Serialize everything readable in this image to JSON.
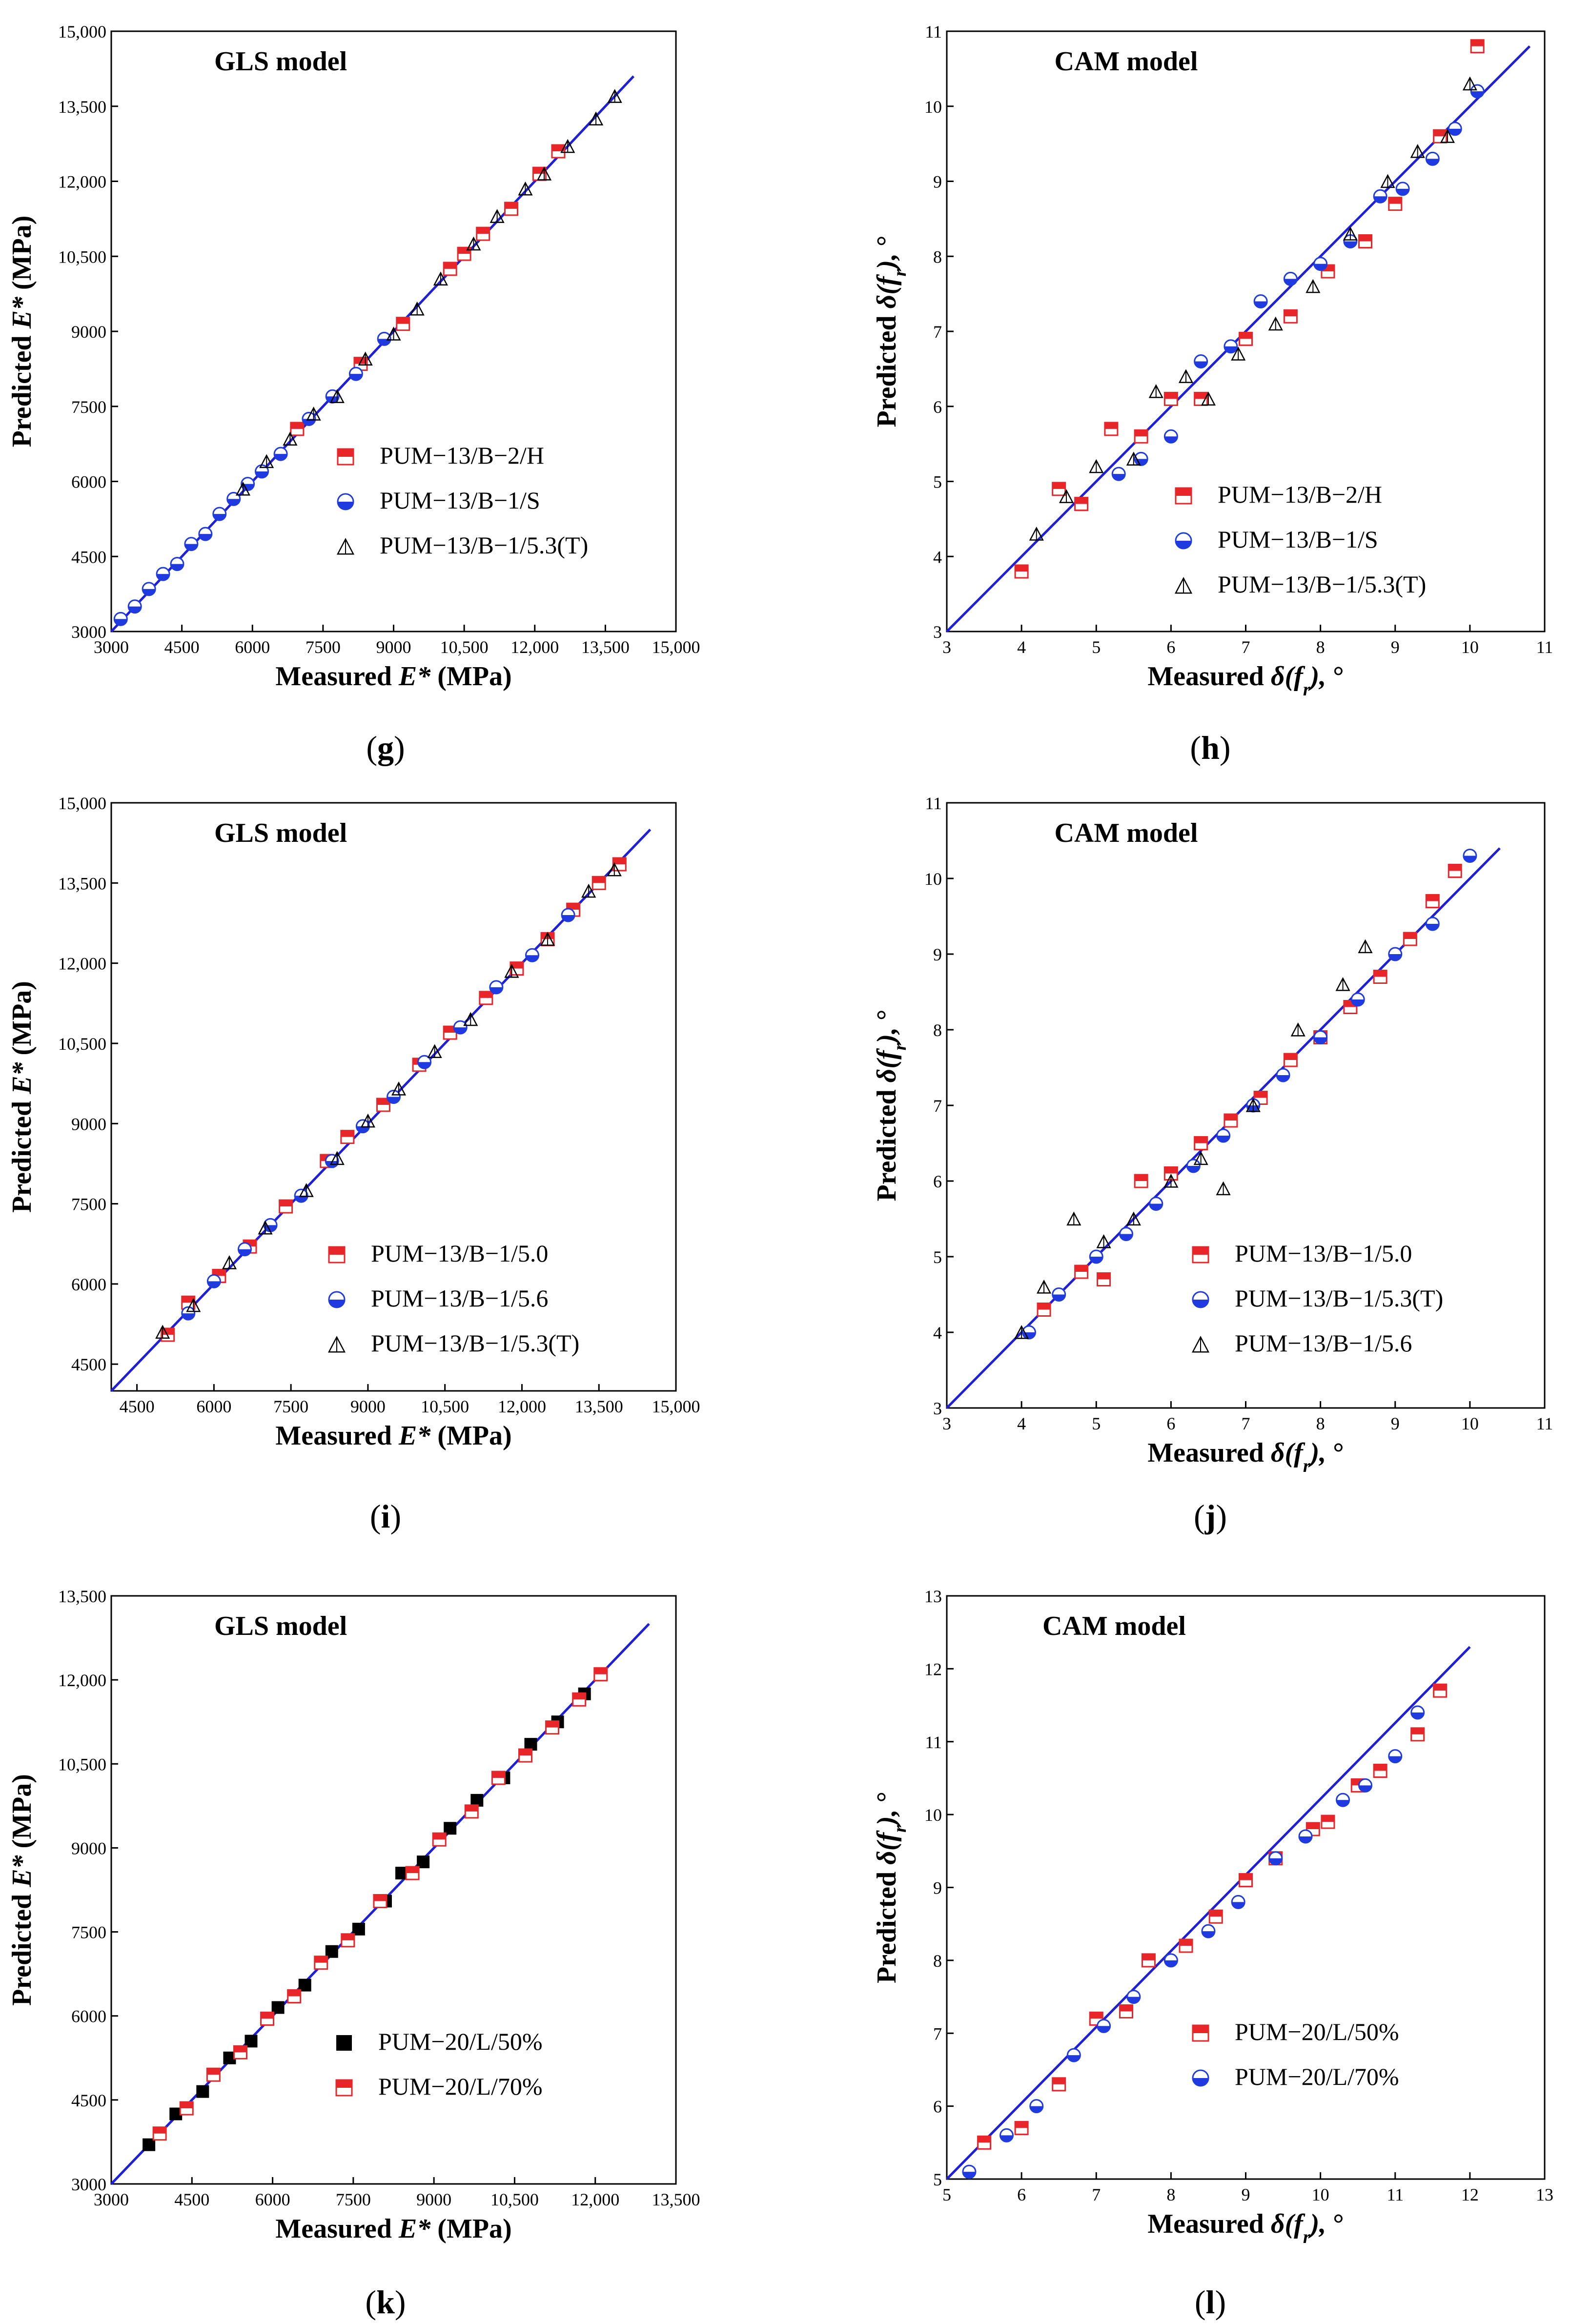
{
  "figure": {
    "panels": [
      {
        "id": "g",
        "title": "GLS model",
        "caption_letter": "g",
        "xlabel": {
          "pre": "Measured ",
          "sym": "E*",
          "post": " (MPa)"
        },
        "ylabel": {
          "pre": "Predicted ",
          "sym": "E*",
          "post": " (MPa)"
        },
        "line_color": "#1f1fd6"
      },
      {
        "id": "h",
        "title": "CAM model",
        "caption_letter": "h",
        "xlabel": {
          "pre": "Measured ",
          "sym": "δ(f_r),",
          "post": " °"
        },
        "ylabel": {
          "pre": "Predicted ",
          "sym": "δ(f_r),",
          "post": " °"
        },
        "line_color": "#1f1fd6"
      },
      {
        "id": "i",
        "title": "GLS model",
        "caption_letter": "i",
        "xlabel": {
          "pre": "Measured ",
          "sym": "E*",
          "post": " (MPa)"
        },
        "ylabel": {
          "pre": "Predicted ",
          "sym": "E*",
          "post": " (MPa)"
        },
        "line_color": "#1f1fd6"
      },
      {
        "id": "j",
        "title": "CAM model",
        "caption_letter": "j",
        "xlabel": {
          "pre": "Measured ",
          "sym": "δ(f_r),",
          "post": " °"
        },
        "ylabel": {
          "pre": "Predicted ",
          "sym": "δ(f_r),",
          "post": " °"
        },
        "line_color": "#1f1fd6"
      },
      {
        "id": "k",
        "title": "GLS model",
        "caption_letter": "k",
        "xlabel": {
          "pre": "Measured ",
          "sym": "E*",
          "post": " (MPa)"
        },
        "ylabel": {
          "pre": "Predicted ",
          "sym": "E*",
          "post": " (MPa)"
        },
        "line_color": "#1f1fd6"
      },
      {
        "id": "l",
        "title": "CAM model",
        "caption_letter": "l",
        "xlabel": {
          "pre": "Measured ",
          "sym": "δ(f_r),",
          "post": " °"
        },
        "ylabel": {
          "pre": "Predicted ",
          "sym": "δ(f_r),",
          "post": " °"
        },
        "line_color": "#1f1fd6"
      }
    ]
  },
  "chart_data": [
    {
      "type": "scatter",
      "panel": "g",
      "title": "GLS model",
      "xlabel": "Measured E* (MPa)",
      "ylabel": "Predicted E* (MPa)",
      "xlim": [
        3000,
        15000
      ],
      "ylim": [
        3000,
        15000
      ],
      "xticks": [
        "3000",
        "4500",
        "6000",
        "7500",
        "9000",
        "10,500",
        "12,000",
        "13,500",
        "15,000"
      ],
      "yticks": [
        "3000",
        "4500",
        "6000",
        "7500",
        "9000",
        "10,500",
        "12,000",
        "13,500",
        "15,000"
      ],
      "tick_values": [
        3000,
        4500,
        6000,
        7500,
        9000,
        10500,
        12000,
        13500,
        15000
      ],
      "equality_line": [
        [
          3000,
          3000
        ],
        [
          14100,
          14100
        ]
      ],
      "legend_position": "bottom-right",
      "series": [
        {
          "name": "PUM−13/B−2/H",
          "marker": "square-red-half",
          "x": [
            6950,
            8300,
            9200,
            10200,
            10500,
            10900,
            11500,
            12100,
            12500
          ],
          "y": [
            7050,
            8350,
            9150,
            10250,
            10550,
            10950,
            11450,
            12150,
            12600
          ]
        },
        {
          "name": "PUM−13/B−1/S",
          "marker": "circle-blue-half",
          "x": [
            3200,
            3500,
            3800,
            4100,
            4400,
            4700,
            5000,
            5300,
            5600,
            5900,
            6200,
            6600,
            7200,
            7700,
            8200,
            8800
          ],
          "y": [
            3250,
            3500,
            3850,
            4150,
            4350,
            4750,
            4950,
            5350,
            5650,
            5950,
            6200,
            6550,
            7250,
            7700,
            8150,
            8850
          ]
        },
        {
          "name": "PUM−13/B−1/5.3(T)",
          "marker": "triangle-open",
          "x": [
            5800,
            6300,
            6800,
            7300,
            7800,
            8400,
            9000,
            9500,
            10000,
            10700,
            11200,
            11800,
            12200,
            12700,
            13300,
            13700
          ],
          "y": [
            5850,
            6400,
            6850,
            7350,
            7700,
            8450,
            8950,
            9450,
            10050,
            10750,
            11300,
            11850,
            12150,
            12700,
            13250,
            13700
          ]
        }
      ]
    },
    {
      "type": "scatter",
      "panel": "h",
      "title": "CAM model",
      "xlabel": "Measured δ(f_r), °",
      "ylabel": "Predicted δ(f_r), °",
      "xlim": [
        3,
        11
      ],
      "ylim": [
        3,
        11
      ],
      "xticks": [
        "3",
        "4",
        "5",
        "6",
        "7",
        "8",
        "9",
        "10",
        "11"
      ],
      "yticks": [
        "3",
        "4",
        "5",
        "6",
        "7",
        "8",
        "9",
        "10",
        "11"
      ],
      "tick_values": [
        3,
        4,
        5,
        6,
        7,
        8,
        9,
        10,
        11
      ],
      "equality_line": [
        [
          3,
          3
        ],
        [
          10.8,
          10.8
        ]
      ],
      "legend_position": "bottom-right",
      "series": [
        {
          "name": "PUM−13/B−2/H",
          "marker": "square-red-half",
          "x": [
            4.0,
            4.5,
            4.8,
            5.2,
            5.6,
            6.0,
            6.4,
            7.0,
            7.6,
            8.1,
            8.6,
            9.0,
            9.6,
            10.1
          ],
          "y": [
            3.8,
            4.9,
            4.7,
            5.7,
            5.6,
            6.1,
            6.1,
            6.9,
            7.2,
            7.8,
            8.2,
            8.7,
            9.6,
            10.8
          ]
        },
        {
          "name": "PUM−13/B−1/S",
          "marker": "circle-blue-half",
          "x": [
            5.3,
            5.6,
            6.0,
            6.4,
            6.8,
            7.2,
            7.6,
            8.0,
            8.4,
            8.8,
            9.1,
            9.5,
            9.8,
            10.1
          ],
          "y": [
            5.1,
            5.3,
            5.6,
            6.6,
            6.8,
            7.4,
            7.7,
            7.9,
            8.2,
            8.8,
            8.9,
            9.3,
            9.7,
            10.2
          ]
        },
        {
          "name": "PUM−13/B−1/5.3(T)",
          "marker": "triangle-open",
          "x": [
            4.2,
            4.6,
            5.0,
            5.5,
            5.8,
            6.2,
            6.5,
            6.9,
            7.4,
            7.9,
            8.4,
            8.9,
            9.3,
            9.7,
            10.0
          ],
          "y": [
            4.3,
            4.8,
            5.2,
            5.3,
            6.2,
            6.4,
            6.1,
            6.7,
            7.1,
            7.6,
            8.3,
            9.0,
            9.4,
            9.6,
            10.3
          ]
        }
      ]
    },
    {
      "type": "scatter",
      "panel": "i",
      "title": "GLS model",
      "xlabel": "Measured E* (MPa)",
      "ylabel": "Predicted E* (MPa)",
      "xlim": [
        4000,
        15000
      ],
      "ylim": [
        4000,
        15000
      ],
      "xticks": [
        "4500",
        "6000",
        "7500",
        "9000",
        "10,500",
        "12,000",
        "13,500",
        "15,000"
      ],
      "yticks": [
        "4500",
        "6000",
        "7500",
        "9000",
        "10,500",
        "12,000",
        "13,500",
        "15,000"
      ],
      "tick_values": [
        4500,
        6000,
        7500,
        9000,
        10500,
        12000,
        13500,
        15000
      ],
      "equality_line": [
        [
          4000,
          4000
        ],
        [
          14500,
          14500
        ]
      ],
      "legend_position": "bottom-right",
      "series": [
        {
          "name": "PUM−13/B−1/5.0",
          "marker": "square-red-half",
          "x": [
            5100,
            5500,
            6100,
            6700,
            7400,
            8200,
            8600,
            9300,
            10000,
            10600,
            11300,
            11900,
            12500,
            13000,
            13500,
            13900
          ],
          "y": [
            5050,
            5650,
            6150,
            6700,
            7450,
            8300,
            8750,
            9350,
            10100,
            10700,
            11350,
            11900,
            12450,
            13000,
            13500,
            13850
          ]
        },
        {
          "name": "PUM−13/B−1/5.6",
          "marker": "circle-blue-half",
          "x": [
            5500,
            6000,
            6600,
            7100,
            7700,
            8300,
            8900,
            9500,
            10100,
            10800,
            11500,
            12200,
            12900
          ],
          "y": [
            5450,
            6050,
            6650,
            7100,
            7650,
            8300,
            8950,
            9500,
            10150,
            10800,
            11550,
            12150,
            12900
          ]
        },
        {
          "name": "PUM−13/B−1/5.3(T)",
          "marker": "triangle-open",
          "x": [
            5000,
            5600,
            6300,
            7000,
            7800,
            8400,
            9000,
            9600,
            10300,
            11000,
            11800,
            12500,
            13300,
            13800
          ],
          "y": [
            5100,
            5600,
            6400,
            7050,
            7750,
            8350,
            9050,
            9650,
            10350,
            10950,
            11850,
            12450,
            13350,
            13750
          ]
        }
      ]
    },
    {
      "type": "scatter",
      "panel": "j",
      "title": "CAM model",
      "xlabel": "Measured δ(f_r), °",
      "ylabel": "Predicted δ(f_r), °",
      "xlim": [
        3,
        11
      ],
      "ylim": [
        3,
        11
      ],
      "xticks": [
        "3",
        "4",
        "5",
        "6",
        "7",
        "8",
        "9",
        "10",
        "11"
      ],
      "yticks": [
        "3",
        "4",
        "5",
        "6",
        "7",
        "8",
        "9",
        "10",
        "11"
      ],
      "tick_values": [
        3,
        4,
        5,
        6,
        7,
        8,
        9,
        10,
        11
      ],
      "equality_line": [
        [
          3,
          3
        ],
        [
          10.4,
          10.4
        ]
      ],
      "legend_position": "bottom-right",
      "series": [
        {
          "name": "PUM−13/B−1/5.0",
          "marker": "square-red-half",
          "x": [
            4.3,
            4.8,
            5.1,
            5.6,
            6.0,
            6.4,
            6.8,
            7.2,
            7.6,
            8.0,
            8.4,
            8.8,
            9.2,
            9.5,
            9.8
          ],
          "y": [
            4.3,
            4.8,
            4.7,
            6.0,
            6.1,
            6.5,
            6.8,
            7.1,
            7.6,
            7.9,
            8.3,
            8.7,
            9.2,
            9.7,
            10.1
          ]
        },
        {
          "name": "PUM−13/B−1/5.3(T)",
          "marker": "circle-blue-half",
          "x": [
            4.1,
            4.5,
            5.0,
            5.4,
            5.8,
            6.3,
            6.7,
            7.1,
            7.5,
            8.0,
            8.5,
            9.0,
            9.5,
            10.0
          ],
          "y": [
            4.0,
            4.5,
            5.0,
            5.3,
            5.7,
            6.2,
            6.6,
            7.0,
            7.4,
            7.9,
            8.4,
            9.0,
            9.4,
            10.3
          ]
        },
        {
          "name": "PUM−13/B−1/5.6",
          "marker": "triangle-open",
          "x": [
            4.0,
            4.3,
            4.7,
            5.1,
            5.5,
            6.0,
            6.4,
            6.7,
            7.1,
            7.7,
            8.3,
            8.6
          ],
          "y": [
            4.0,
            4.6,
            5.5,
            5.2,
            5.5,
            6.0,
            6.3,
            5.9,
            7.0,
            8.0,
            8.6,
            9.1
          ]
        }
      ]
    },
    {
      "type": "scatter",
      "panel": "k",
      "title": "GLS model",
      "xlabel": "Measured E* (MPa)",
      "ylabel": "Predicted E* (MPa)",
      "xlim": [
        3000,
        13500
      ],
      "ylim": [
        3000,
        13500
      ],
      "xticks": [
        "3000",
        "4500",
        "6000",
        "7500",
        "9000",
        "10,500",
        "12,000",
        "13,500"
      ],
      "yticks": [
        "3000",
        "4500",
        "6000",
        "7500",
        "9000",
        "10,500",
        "12,000",
        "13,500"
      ],
      "tick_values": [
        3000,
        4500,
        6000,
        7500,
        9000,
        10500,
        12000,
        13500
      ],
      "equality_line": [
        [
          3000,
          3000
        ],
        [
          13000,
          13000
        ]
      ],
      "legend_position": "bottom-right",
      "series": [
        {
          "name": "PUM−20/L/50%",
          "marker": "square-black",
          "x": [
            3700,
            4200,
            4700,
            5200,
            5600,
            6100,
            6600,
            7100,
            7600,
            8100,
            8400,
            8800,
            9300,
            9800,
            10300,
            10800,
            11300,
            11800
          ],
          "y": [
            3700,
            4250,
            4650,
            5250,
            5550,
            6150,
            6550,
            7150,
            7550,
            8050,
            8550,
            8750,
            9350,
            9850,
            10250,
            10850,
            11250,
            11750
          ]
        },
        {
          "name": "PUM−20/L/70%",
          "marker": "square-red-half",
          "x": [
            3900,
            4400,
            4900,
            5400,
            5900,
            6400,
            6900,
            7400,
            8000,
            8600,
            9100,
            9700,
            10200,
            10700,
            11200,
            11700,
            12100
          ],
          "y": [
            3900,
            4350,
            4950,
            5350,
            5950,
            6350,
            6950,
            7350,
            8050,
            8550,
            9150,
            9650,
            10250,
            10650,
            11150,
            11650,
            12100
          ]
        }
      ]
    },
    {
      "type": "scatter",
      "panel": "l",
      "title": "CAM model",
      "xlabel": "Measured δ(f_r), °",
      "ylabel": "Predicted δ(f_r), °",
      "xlim": [
        5,
        13
      ],
      "ylim": [
        5,
        13
      ],
      "xticks": [
        "5",
        "6",
        "7",
        "8",
        "9",
        "10",
        "11",
        "12",
        "13"
      ],
      "yticks": [
        "5",
        "6",
        "7",
        "8",
        "9",
        "10",
        "11",
        "12",
        "13"
      ],
      "tick_values": [
        5,
        6,
        7,
        8,
        9,
        10,
        11,
        12,
        13
      ],
      "equality_line": [
        [
          5,
          5
        ],
        [
          12.0,
          12.3
        ]
      ],
      "legend_position": "bottom-right",
      "series": [
        {
          "name": "PUM−20/L/50%",
          "marker": "square-red-half",
          "x": [
            5.5,
            6.0,
            6.5,
            7.0,
            7.4,
            7.7,
            8.2,
            8.6,
            9.0,
            9.4,
            9.9,
            10.1,
            10.5,
            10.8,
            11.3,
            11.6
          ],
          "y": [
            5.5,
            5.7,
            6.3,
            7.2,
            7.3,
            8.0,
            8.2,
            8.6,
            9.1,
            9.4,
            9.8,
            9.9,
            10.4,
            10.6,
            11.1,
            11.7
          ]
        },
        {
          "name": "PUM−20/L/70%",
          "marker": "circle-blue-half",
          "x": [
            5.3,
            5.8,
            6.2,
            6.7,
            7.1,
            7.5,
            8.0,
            8.5,
            8.9,
            9.4,
            9.8,
            10.3,
            10.6,
            11.0,
            11.3
          ],
          "y": [
            5.1,
            5.6,
            6.0,
            6.7,
            7.1,
            7.5,
            8.0,
            8.4,
            8.8,
            9.4,
            9.7,
            10.2,
            10.4,
            10.8,
            11.4
          ]
        }
      ]
    }
  ]
}
